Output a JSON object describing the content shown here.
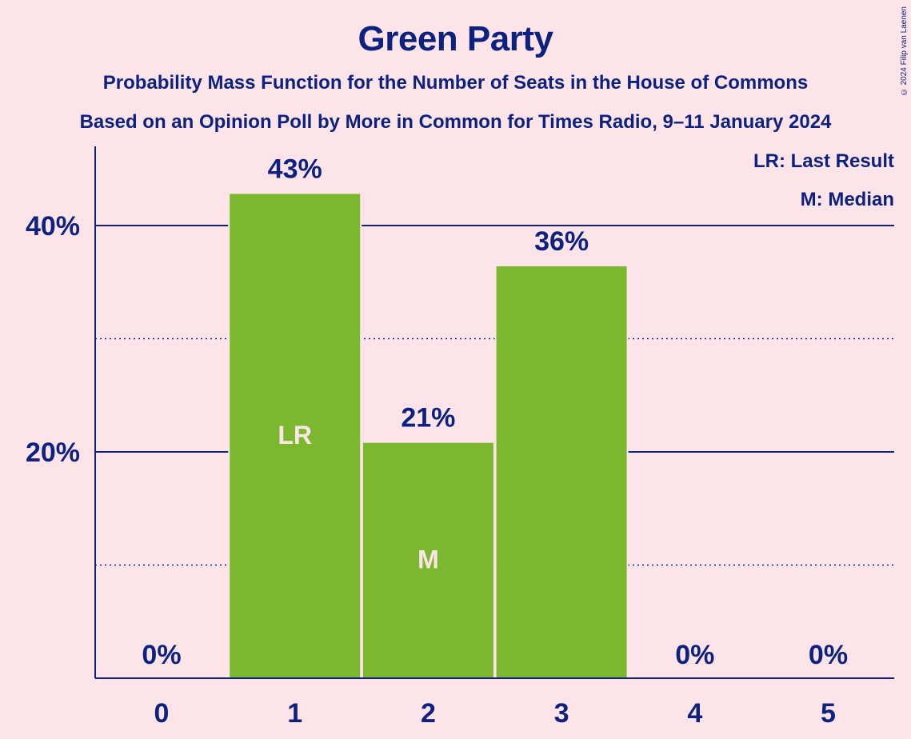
{
  "header": {
    "title": "Green Party",
    "subtitle": "Probability Mass Function for the Number of Seats in the House of Commons",
    "subtitle2": "Based on an Opinion Poll by More in Common for Times Radio, 9–11 January 2024"
  },
  "copyright": "© 2024 Filip van Laenen",
  "legend": {
    "last_result": "LR: Last Result",
    "median": "M: Median"
  },
  "colors": {
    "background": "#fce4e8",
    "bar": "#7cb82f",
    "text": "#0d2280",
    "marker_text": "#fce4e8"
  },
  "chart_data": {
    "type": "bar",
    "title": "Green Party",
    "categories": [
      "0",
      "1",
      "2",
      "3",
      "4",
      "5"
    ],
    "values": [
      0,
      43,
      21,
      36,
      0,
      0
    ],
    "value_labels": [
      "0%",
      "43%",
      "21%",
      "36%",
      "0%",
      "0%"
    ],
    "y_ticks": [
      20,
      40
    ],
    "y_tick_labels": [
      "20%",
      "40%"
    ],
    "minor_gridlines": [
      10,
      30
    ],
    "ylim": [
      0,
      47
    ],
    "markers": [
      {
        "category": "1",
        "label": "LR",
        "at_value": 21.5
      },
      {
        "category": "2",
        "label": "M",
        "at_value": 10.5
      }
    ],
    "precise_values": [
      0,
      42.8,
      20.8,
      36.4,
      0,
      0
    ],
    "legend_position": "top-right",
    "xlabel": "",
    "ylabel": ""
  }
}
